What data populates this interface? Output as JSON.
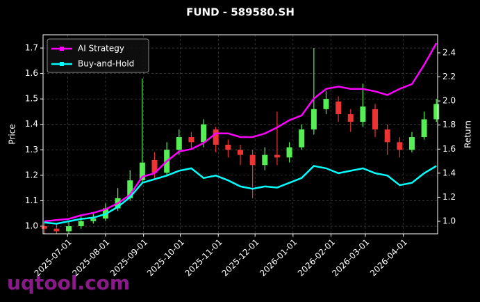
{
  "chart_data": {
    "type": "candlestick",
    "title": "FUND - 589580.SH",
    "ylabel": "Price",
    "y2label": "Return",
    "watermark": "uqtool.com",
    "x": [
      "2025-06-12",
      "2025-06-22",
      "2025-07-02",
      "2025-07-12",
      "2025-07-22",
      "2025-08-01",
      "2025-08-11",
      "2025-08-21",
      "2025-08-31",
      "2025-09-10",
      "2025-09-20",
      "2025-09-30",
      "2025-10-10",
      "2025-10-20",
      "2025-10-30",
      "2025-11-09",
      "2025-11-19",
      "2025-11-29",
      "2025-12-09",
      "2025-12-19",
      "2025-12-29",
      "2026-01-08",
      "2026-01-18",
      "2026-01-28",
      "2026-02-07",
      "2026-02-17",
      "2026-02-27",
      "2026-03-09",
      "2026-03-19",
      "2026-03-29",
      "2026-04-08",
      "2026-04-18",
      "2026-04-28"
    ],
    "open": [
      1.0,
      0.99,
      0.98,
      1.0,
      1.02,
      1.03,
      1.07,
      1.11,
      1.18,
      1.26,
      1.21,
      1.3,
      1.35,
      1.33,
      1.38,
      1.32,
      1.3,
      1.28,
      1.24,
      1.28,
      1.27,
      1.31,
      1.38,
      1.46,
      1.49,
      1.44,
      1.41,
      1.46,
      1.38,
      1.33,
      1.3,
      1.35,
      1.42
    ],
    "high": [
      1.02,
      1.01,
      1.02,
      1.04,
      1.05,
      1.09,
      1.15,
      1.22,
      1.58,
      1.29,
      1.33,
      1.38,
      1.37,
      1.42,
      1.39,
      1.34,
      1.32,
      1.3,
      1.31,
      1.45,
      1.33,
      1.4,
      1.7,
      1.53,
      1.51,
      1.46,
      1.56,
      1.48,
      1.4,
      1.35,
      1.37,
      1.45,
      1.5
    ],
    "low": [
      0.97,
      0.97,
      0.97,
      0.99,
      1.01,
      1.02,
      1.06,
      1.1,
      1.17,
      1.18,
      1.2,
      1.28,
      1.3,
      1.31,
      1.29,
      1.27,
      1.24,
      1.11,
      1.22,
      1.24,
      1.25,
      1.3,
      1.36,
      1.44,
      1.41,
      1.37,
      1.39,
      1.35,
      1.28,
      1.27,
      1.29,
      1.34,
      1.41
    ],
    "close": [
      0.99,
      0.98,
      1.0,
      1.02,
      1.03,
      1.07,
      1.11,
      1.18,
      1.25,
      1.21,
      1.3,
      1.35,
      1.33,
      1.4,
      1.32,
      1.3,
      1.28,
      1.24,
      1.28,
      1.27,
      1.31,
      1.38,
      1.46,
      1.5,
      1.44,
      1.41,
      1.47,
      1.38,
      1.33,
      1.3,
      1.35,
      1.42,
      1.48
    ],
    "up_color": "#55ee55",
    "down_color": "#ee3333",
    "series": [
      {
        "name": "AI Strategy",
        "color": "#ff00ff",
        "axis": "y2",
        "values": [
          1.0,
          1.01,
          1.02,
          1.05,
          1.07,
          1.1,
          1.15,
          1.22,
          1.37,
          1.4,
          1.5,
          1.58,
          1.6,
          1.65,
          1.73,
          1.73,
          1.7,
          1.7,
          1.73,
          1.78,
          1.84,
          1.88,
          2.02,
          2.1,
          2.12,
          2.1,
          2.1,
          2.08,
          2.05,
          2.1,
          2.14,
          2.3,
          2.48
        ]
      },
      {
        "name": "Buy-and-Hold",
        "color": "#00ffff",
        "axis": "y2",
        "values": [
          0.99,
          0.98,
          1.0,
          1.02,
          1.03,
          1.06,
          1.12,
          1.2,
          1.32,
          1.35,
          1.38,
          1.42,
          1.44,
          1.36,
          1.38,
          1.34,
          1.29,
          1.27,
          1.29,
          1.28,
          1.32,
          1.36,
          1.46,
          1.44,
          1.4,
          1.42,
          1.44,
          1.4,
          1.38,
          1.3,
          1.32,
          1.4,
          1.46
        ]
      }
    ],
    "xlim": [
      "2025-06-11",
      "2026-04-29"
    ],
    "xticks": [
      "2025-07-01",
      "2025-08-01",
      "2025-09-01",
      "2025-10-01",
      "2025-11-01",
      "2025-12-01",
      "2026-01-01",
      "2026-02-01",
      "2026-03-01",
      "2026-04-01"
    ],
    "ylim": [
      0.97,
      1.752
    ],
    "yticks": [
      {
        "value": 1,
        "label": "1.0"
      },
      1.1,
      1.2,
      1.3,
      1.4,
      1.5,
      1.6,
      1.7
    ],
    "y2lim": [
      0.896,
      2.55
    ],
    "y2ticks": [
      {
        "value": 1,
        "label": "1.0"
      },
      1.2,
      1.4,
      1.6,
      1.8,
      {
        "value": 2,
        "label": "2.0"
      },
      2.2,
      2.4
    ],
    "grid": true,
    "legend": "upper left"
  }
}
